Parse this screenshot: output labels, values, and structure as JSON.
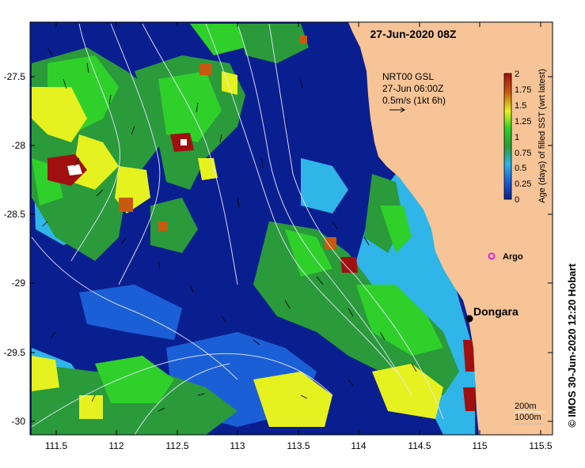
{
  "header": {
    "title": "27-Jun-2020 08Z"
  },
  "current_legend": {
    "line1": "NRT00 GSL",
    "line2": "27-Jun 06:00Z",
    "line3": "0.5m/s (1kt 6h)"
  },
  "colorbar": {
    "label": "Age (days) of filled SST (wrt latest)",
    "ticks": [
      "2",
      "1.75",
      "1.5",
      "1.25",
      "1",
      "0.75",
      "0.5",
      "0.25",
      "0"
    ],
    "range": [
      0,
      2
    ],
    "colors": [
      "#0a1f8f",
      "#1b5fd6",
      "#2fb5e8",
      "#2a9a3a",
      "#2fd02a",
      "#e6f21f",
      "#c85a10",
      "#a01010"
    ]
  },
  "places": {
    "town": "Dongara",
    "float": "Argo"
  },
  "axes": {
    "x_ticks": [
      "111.5",
      "112",
      "112.5",
      "113",
      "113.5",
      "114",
      "114.5",
      "115",
      "115.5"
    ],
    "y_ticks": [
      "-27.5",
      "-28",
      "-28.5",
      "-29",
      "-29.5",
      "-30"
    ],
    "xlim": [
      111.3,
      115.6
    ],
    "ylim": [
      -30.1,
      -27.05
    ]
  },
  "isobaths": {
    "label_a": "200m",
    "label_b": "1000m"
  },
  "credit": "© IMOS 30-Jun-2020 12:20 Hobart",
  "colors": {
    "land": "#f7c497",
    "ocean_base": "#0a1f8f",
    "argo": "#e020e0"
  }
}
